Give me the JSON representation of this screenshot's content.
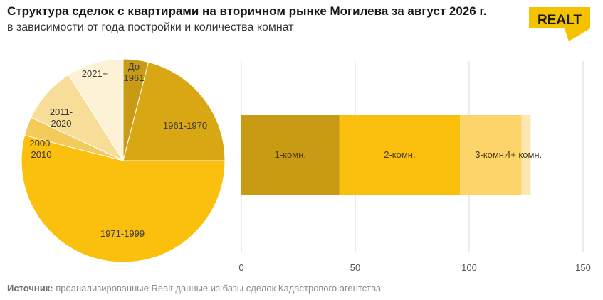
{
  "header": {
    "title": "Структура сделок с квартирами на вторичном рынке Могилева за август 2026 г.",
    "subtitle": "в зависимости от года постройки и количества комнат"
  },
  "logo": {
    "text": "REALT",
    "icon": "realt-logo",
    "color": "#f5c200"
  },
  "source": {
    "label": "Источник:",
    "text": "проанализированные Realt данные из базы сделок Кадастрового агентства"
  },
  "colors": {
    "gold_dark": "#c99b14",
    "gold": "#fbbf0e",
    "gold_light": "#f8d35c",
    "gold_pale": "#fbe6a8",
    "cream": "#fdf2d6",
    "grid": "#d9d9d9"
  },
  "chart_data": [
    {
      "type": "pie",
      "slices": [
        {
          "label": "До 1961",
          "value": 4,
          "color": "#c99b14"
        },
        {
          "label": "1961-1970",
          "value": 21,
          "color": "#d9a614"
        },
        {
          "label": "1971-1999",
          "value": 54,
          "color": "#fbbf0e"
        },
        {
          "label": "2000-2010",
          "value": 3,
          "color": "#f2cb5a"
        },
        {
          "label": "2011-2020",
          "value": 9,
          "color": "#f8dd98"
        },
        {
          "label": "2021+",
          "value": 9,
          "color": "#fdf2d6"
        }
      ]
    },
    {
      "type": "bar",
      "orientation": "horizontal",
      "stacked": true,
      "xlim": [
        0,
        150
      ],
      "xticks": [
        "0",
        "50",
        "100",
        "150"
      ],
      "grid": true,
      "series": [
        {
          "name": "1-комн.",
          "value": 43,
          "color": "#c99b14"
        },
        {
          "name": "2-комн.",
          "value": 53,
          "color": "#fbbf0e"
        },
        {
          "name": "3-комн.",
          "value": 27,
          "color": "#fdd46a"
        },
        {
          "name": "4+ комн.",
          "value": 4,
          "color": "#fde6b0"
        }
      ]
    }
  ]
}
